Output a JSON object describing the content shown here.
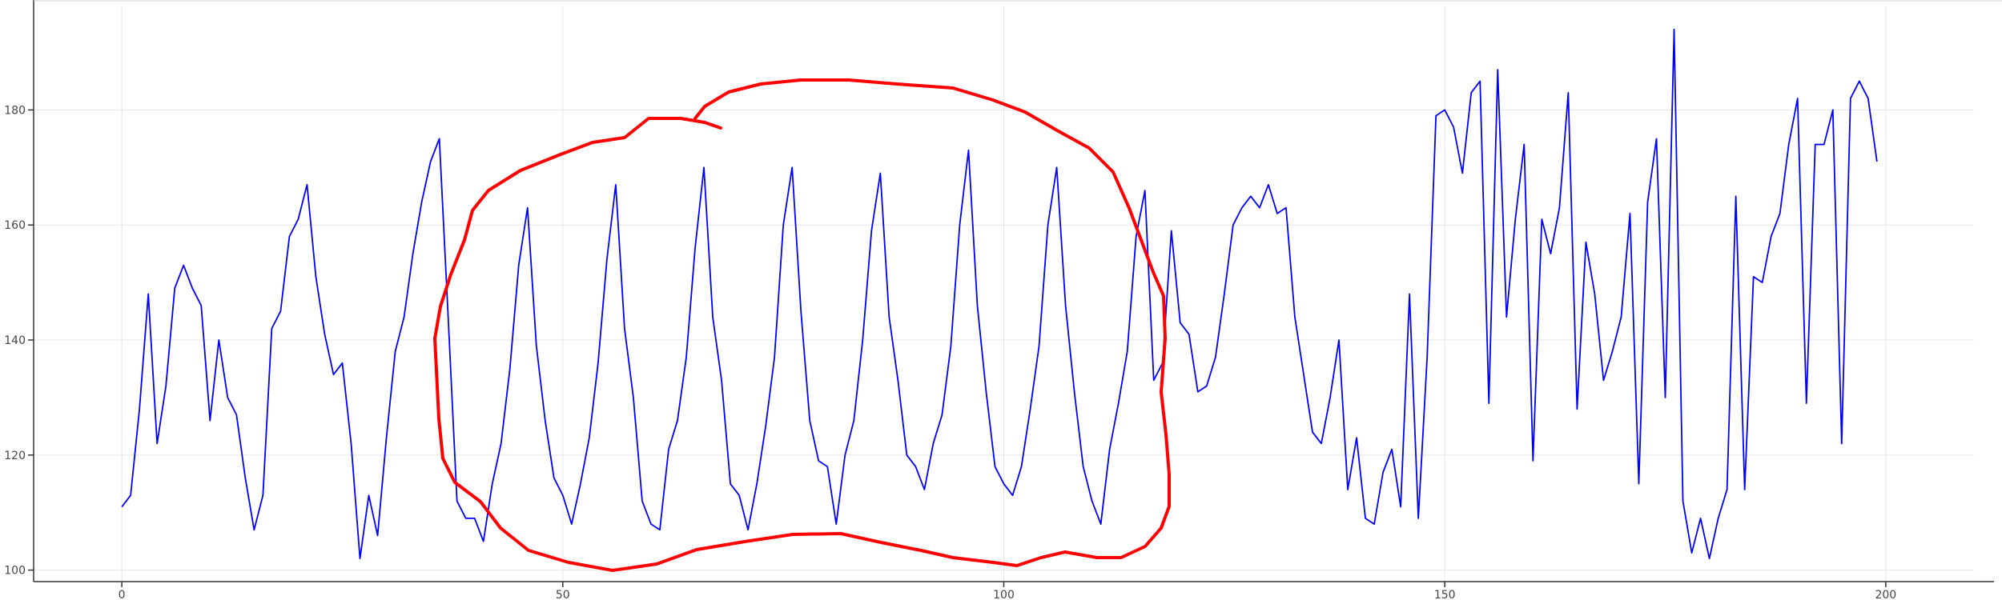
{
  "chart_data": {
    "type": "line",
    "title": "",
    "xlabel": "",
    "ylabel": "",
    "xlim": [
      -10,
      210
    ],
    "ylim": [
      98,
      198
    ],
    "x_ticks": [
      0,
      50,
      100,
      150,
      200
    ],
    "y_ticks": [
      100,
      120,
      140,
      160,
      180
    ],
    "x_tick_labels": [
      "0",
      "50",
      "100",
      "150",
      "200"
    ],
    "y_tick_labels": [
      "100",
      "120",
      "140",
      "160",
      "180"
    ],
    "grid": true,
    "series_color": "#0000ff",
    "annotation_color": "#ff0000",
    "series": [
      {
        "values": [
          111,
          113,
          128,
          148,
          122,
          132,
          149,
          153,
          149,
          146,
          126,
          140,
          130,
          127,
          116,
          107,
          113,
          142,
          145,
          158,
          161,
          167,
          151,
          141,
          134,
          136,
          122,
          102,
          113,
          106,
          123,
          138,
          144,
          155,
          164,
          171,
          175,
          144,
          112,
          109,
          109,
          105,
          115,
          122,
          135,
          153,
          163,
          139,
          126,
          116,
          113,
          108,
          115,
          123,
          136,
          154,
          167,
          142,
          130,
          112,
          108,
          107,
          121,
          126,
          137,
          156,
          170,
          144,
          133,
          115,
          113,
          107,
          115,
          125,
          137,
          160,
          170,
          145,
          126,
          119,
          118,
          108,
          120,
          126,
          140,
          159,
          169,
          144,
          133,
          120,
          118,
          114,
          122,
          127,
          139,
          160,
          173,
          146,
          131,
          118,
          115,
          113,
          118,
          128,
          139,
          160,
          170,
          146,
          131,
          118,
          112,
          108,
          121,
          129,
          138,
          158,
          166,
          133,
          136,
          159,
          143,
          141,
          131,
          132,
          137,
          148,
          160,
          163,
          165,
          163,
          167,
          162,
          163,
          144,
          134,
          124,
          122,
          130,
          140,
          114,
          123,
          109,
          108,
          117,
          121,
          111,
          148,
          109,
          137,
          179,
          180,
          177,
          169,
          183,
          185,
          129,
          187,
          144,
          161,
          174,
          119,
          161,
          155,
          163,
          183,
          128,
          157,
          148,
          133,
          138,
          144,
          162,
          115,
          164,
          175,
          130,
          194,
          112,
          103,
          109,
          102,
          109,
          114,
          165,
          114,
          151,
          150,
          158,
          162,
          174,
          182,
          129,
          174,
          174,
          180,
          122,
          182,
          185,
          182,
          171
        ]
      }
    ]
  }
}
